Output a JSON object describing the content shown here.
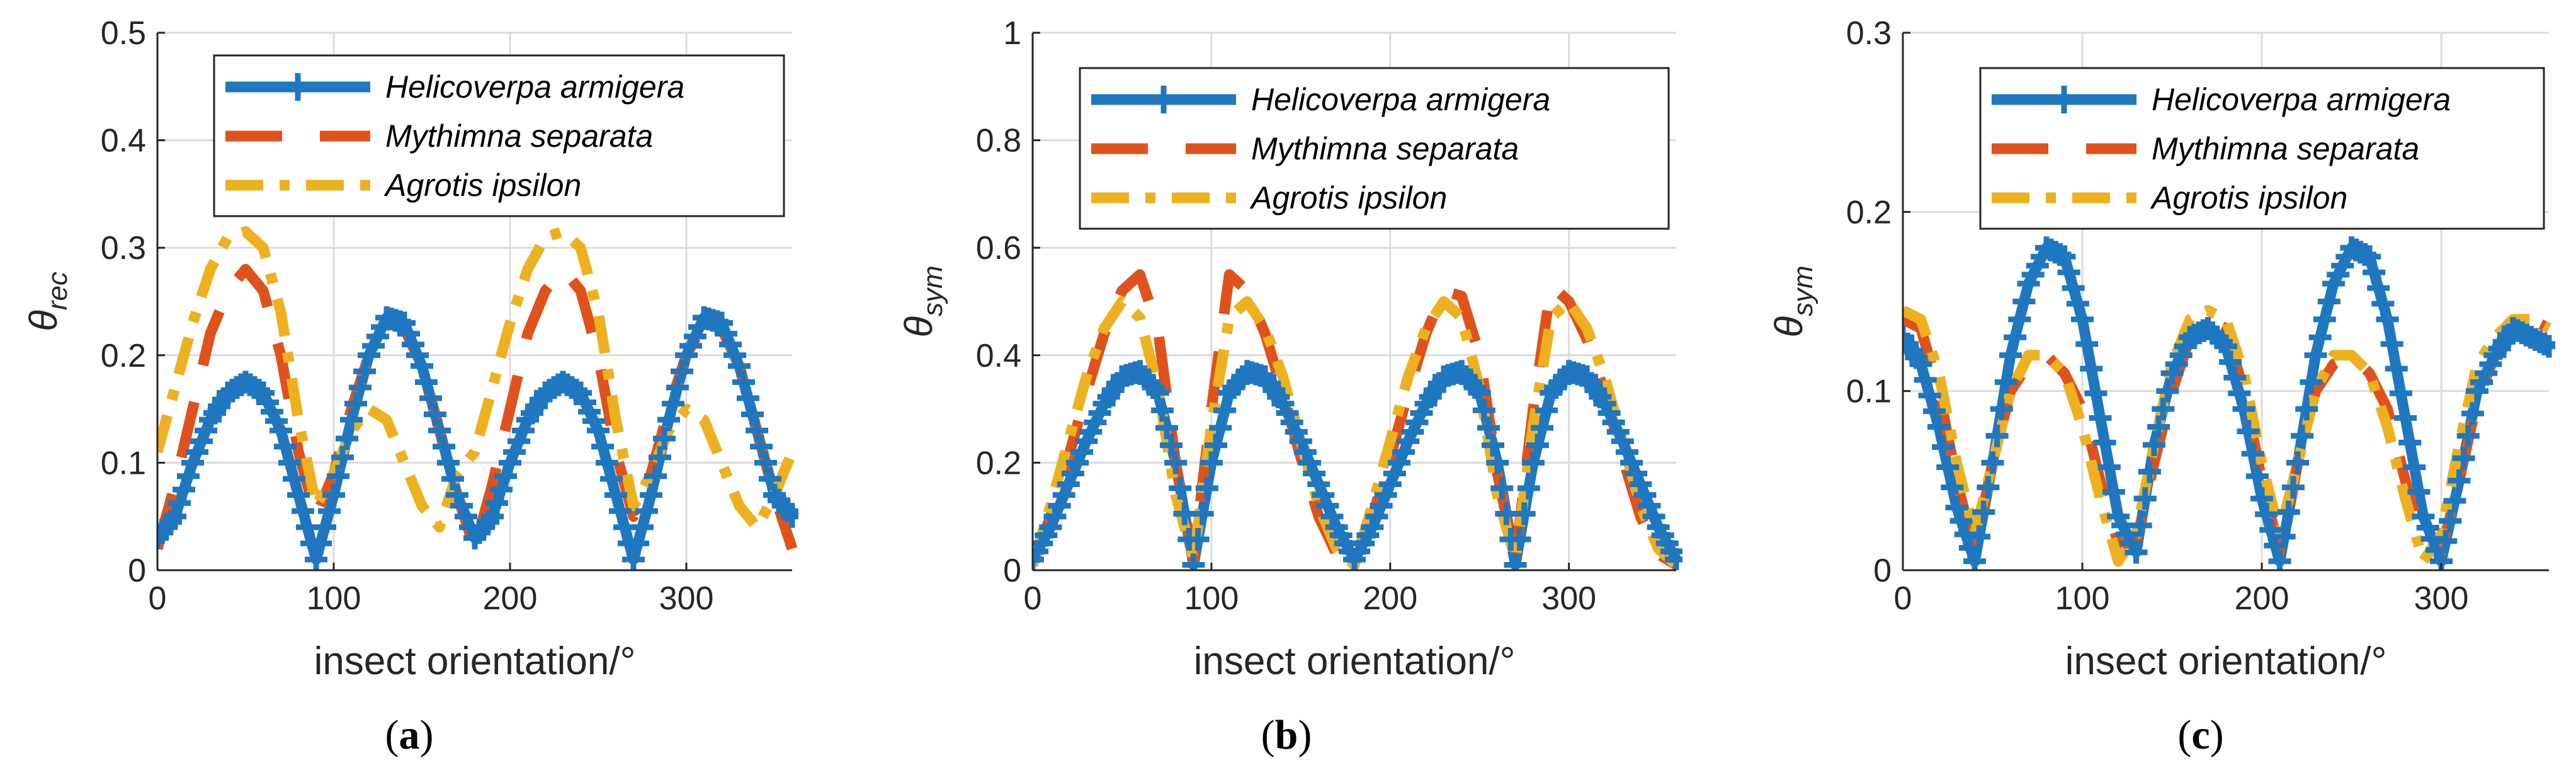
{
  "colors": {
    "helicoverpa": "#1f77c0",
    "mythimna": "#e0521b",
    "agrotis": "#edb120",
    "axis": "#262626",
    "grid": "#dcdcdc"
  },
  "chart_data": [
    {
      "type": "line",
      "panel_label": "a",
      "ylabel": "θ",
      "ylabel_sub": "rec",
      "xlabel": "insect orientation/°",
      "xlim": [
        0,
        360
      ],
      "ylim": [
        0,
        0.5
      ],
      "xticks": [
        0,
        100,
        200,
        300
      ],
      "yticks": [
        0,
        0.1,
        0.2,
        0.3,
        0.4,
        0.5
      ],
      "ytick_labels": [
        "0",
        "0.1",
        "0.2",
        "0.3",
        "0.4",
        "0.5"
      ],
      "grid": true,
      "legend_position": "top-right",
      "x": [
        0,
        10,
        20,
        30,
        40,
        50,
        60,
        70,
        80,
        90,
        100,
        110,
        120,
        130,
        140,
        150,
        160,
        170,
        180,
        190,
        200,
        210,
        220,
        230,
        240,
        250,
        260,
        270,
        280,
        290,
        300,
        310,
        320,
        330,
        340,
        350,
        360
      ],
      "series": [
        {
          "name": "Helicoverpa armigera",
          "style": "solid-plus",
          "values": [
            0.03,
            0.05,
            0.1,
            0.14,
            0.165,
            0.175,
            0.165,
            0.13,
            0.07,
            0.01,
            0.07,
            0.14,
            0.2,
            0.235,
            0.23,
            0.19,
            0.13,
            0.07,
            0.03,
            0.05,
            0.1,
            0.14,
            0.165,
            0.175,
            0.165,
            0.13,
            0.07,
            0.01,
            0.07,
            0.14,
            0.2,
            0.235,
            0.23,
            0.19,
            0.13,
            0.07,
            0.05
          ]
        },
        {
          "name": "Mythimna separata",
          "style": "dashed",
          "values": [
            0.02,
            0.08,
            0.15,
            0.22,
            0.26,
            0.28,
            0.26,
            0.2,
            0.11,
            0.05,
            0.09,
            0.15,
            0.2,
            0.23,
            0.225,
            0.19,
            0.13,
            0.07,
            0.02,
            0.08,
            0.15,
            0.22,
            0.26,
            0.28,
            0.26,
            0.2,
            0.11,
            0.05,
            0.09,
            0.15,
            0.2,
            0.23,
            0.225,
            0.19,
            0.13,
            0.07,
            0.02
          ]
        },
        {
          "name": "Agrotis ipsilon",
          "style": "dashdot",
          "values": [
            0.11,
            0.17,
            0.23,
            0.28,
            0.31,
            0.315,
            0.3,
            0.24,
            0.14,
            0.06,
            0.09,
            0.13,
            0.15,
            0.14,
            0.1,
            0.06,
            0.04,
            0.09,
            0.11,
            0.17,
            0.23,
            0.28,
            0.31,
            0.315,
            0.3,
            0.24,
            0.14,
            0.06,
            0.09,
            0.13,
            0.15,
            0.14,
            0.1,
            0.06,
            0.04,
            0.07,
            0.11
          ]
        }
      ]
    },
    {
      "type": "line",
      "panel_label": "b",
      "ylabel": "θ",
      "ylabel_sub": "sym",
      "xlabel": "insect orientation/°",
      "xlim": [
        0,
        360
      ],
      "ylim": [
        0,
        1
      ],
      "xticks": [
        0,
        100,
        200,
        300
      ],
      "yticks": [
        0,
        0.2,
        0.4,
        0.6,
        0.8,
        1
      ],
      "ytick_labels": [
        "0",
        "0.2",
        "0.4",
        "0.6",
        "0.8",
        "1"
      ],
      "grid": true,
      "legend_position": "top-right",
      "x": [
        0,
        10,
        20,
        30,
        40,
        50,
        60,
        70,
        80,
        90,
        100,
        110,
        120,
        130,
        140,
        150,
        160,
        170,
        180,
        190,
        200,
        210,
        220,
        230,
        240,
        250,
        260,
        270,
        280,
        290,
        300,
        310,
        320,
        330,
        340,
        350,
        360
      ],
      "series": [
        {
          "name": "Helicoverpa armigera",
          "style": "solid-plus",
          "values": [
            0.02,
            0.08,
            0.16,
            0.24,
            0.31,
            0.36,
            0.37,
            0.33,
            0.2,
            0.01,
            0.2,
            0.33,
            0.37,
            0.36,
            0.31,
            0.24,
            0.16,
            0.08,
            0.02,
            0.08,
            0.16,
            0.24,
            0.31,
            0.36,
            0.37,
            0.33,
            0.2,
            0.01,
            0.2,
            0.33,
            0.37,
            0.36,
            0.31,
            0.24,
            0.16,
            0.08,
            0.02
          ]
        },
        {
          "name": "Mythimna separata",
          "style": "dashed",
          "values": [
            0.01,
            0.1,
            0.21,
            0.33,
            0.44,
            0.52,
            0.55,
            0.45,
            0.2,
            0.02,
            0.3,
            0.55,
            0.52,
            0.44,
            0.33,
            0.21,
            0.1,
            0.03,
            0.01,
            0.1,
            0.21,
            0.33,
            0.44,
            0.52,
            0.51,
            0.4,
            0.18,
            0.02,
            0.3,
            0.53,
            0.5,
            0.43,
            0.33,
            0.21,
            0.1,
            0.03,
            0.01
          ]
        },
        {
          "name": "Agrotis ipsilon",
          "style": "dashdot",
          "values": [
            0.01,
            0.12,
            0.24,
            0.36,
            0.45,
            0.5,
            0.47,
            0.34,
            0.14,
            0.02,
            0.27,
            0.47,
            0.5,
            0.45,
            0.36,
            0.24,
            0.12,
            0.04,
            0.01,
            0.12,
            0.24,
            0.36,
            0.45,
            0.5,
            0.47,
            0.34,
            0.14,
            0.02,
            0.27,
            0.47,
            0.5,
            0.45,
            0.36,
            0.24,
            0.12,
            0.04,
            0.01
          ]
        }
      ]
    },
    {
      "type": "line",
      "panel_label": "c",
      "ylabel": "θ",
      "ylabel_sub": "sym",
      "xlabel": "insect orientation/°",
      "xlim": [
        0,
        360
      ],
      "ylim": [
        0,
        0.3
      ],
      "xticks": [
        0,
        100,
        200,
        300
      ],
      "yticks": [
        0,
        0.1,
        0.2,
        0.3
      ],
      "ytick_labels": [
        "0",
        "0.1",
        "0.2",
        "0.3"
      ],
      "grid": true,
      "legend_position": "top-right",
      "x": [
        0,
        10,
        20,
        30,
        40,
        50,
        60,
        70,
        80,
        90,
        100,
        110,
        120,
        130,
        140,
        150,
        160,
        170,
        180,
        190,
        200,
        210,
        220,
        230,
        240,
        250,
        260,
        270,
        280,
        290,
        300,
        310,
        320,
        330,
        340,
        350,
        360
      ],
      "series": [
        {
          "name": "Helicoverpa armigera",
          "style": "solid-plus",
          "values": [
            0.13,
            0.115,
            0.08,
            0.035,
            0.005,
            0.06,
            0.12,
            0.16,
            0.18,
            0.175,
            0.14,
            0.085,
            0.03,
            0.01,
            0.07,
            0.11,
            0.13,
            0.135,
            0.125,
            0.09,
            0.04,
            0.005,
            0.06,
            0.12,
            0.16,
            0.18,
            0.175,
            0.14,
            0.085,
            0.03,
            0.005,
            0.05,
            0.1,
            0.12,
            0.135,
            0.13,
            0.125
          ]
        },
        {
          "name": "Mythimna separata",
          "style": "dashed",
          "values": [
            0.14,
            0.135,
            0.1,
            0.05,
            0.01,
            0.06,
            0.1,
            0.115,
            0.12,
            0.11,
            0.09,
            0.05,
            0.015,
            0.015,
            0.06,
            0.1,
            0.13,
            0.14,
            0.135,
            0.1,
            0.05,
            0.01,
            0.06,
            0.1,
            0.115,
            0.12,
            0.11,
            0.09,
            0.05,
            0.015,
            0.01,
            0.05,
            0.095,
            0.12,
            0.135,
            0.14,
            0.135
          ]
        },
        {
          "name": "Agrotis ipsilon",
          "style": "dashdot",
          "values": [
            0.145,
            0.14,
            0.11,
            0.06,
            0.02,
            0.06,
            0.1,
            0.12,
            0.12,
            0.11,
            0.08,
            0.04,
            0.005,
            0.02,
            0.07,
            0.115,
            0.14,
            0.145,
            0.14,
            0.11,
            0.06,
            0.02,
            0.06,
            0.1,
            0.12,
            0.12,
            0.11,
            0.08,
            0.04,
            0.005,
            0.02,
            0.07,
            0.115,
            0.13,
            0.14,
            0.14,
            0.135
          ]
        }
      ]
    }
  ]
}
